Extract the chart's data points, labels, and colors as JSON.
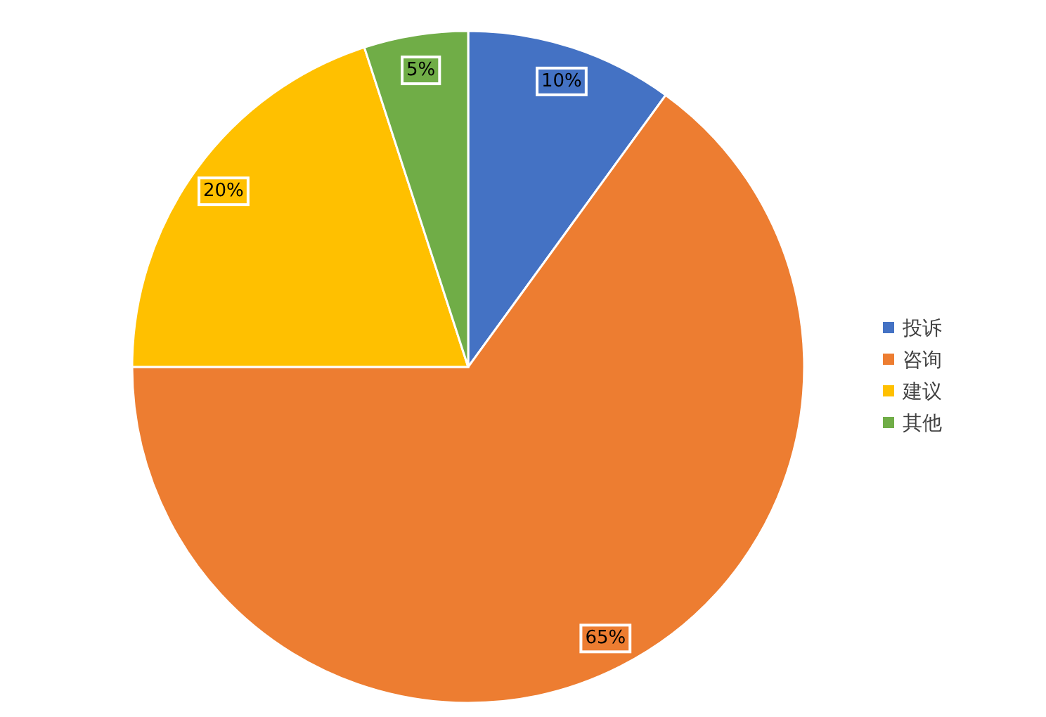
{
  "chart_data": {
    "type": "pie",
    "categories": [
      "投诉",
      "咨询",
      "建议",
      "其他"
    ],
    "values": [
      10,
      65,
      20,
      5
    ],
    "colors": [
      "#4472c4",
      "#ed7d31",
      "#ffc000",
      "#70ad47"
    ],
    "value_labels": [
      "10%",
      "65%",
      "20%",
      "5%"
    ],
    "legend": "right"
  }
}
